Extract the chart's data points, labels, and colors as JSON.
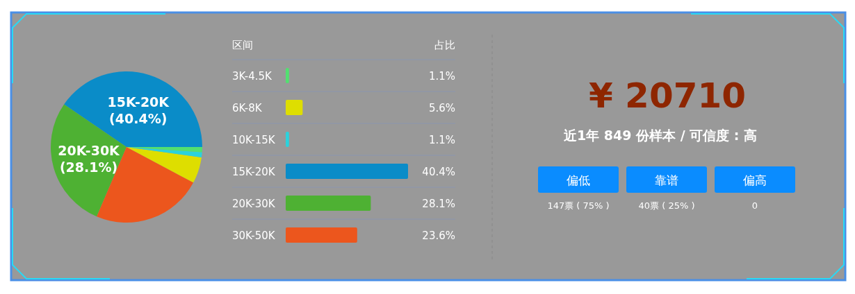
{
  "chart_data": [
    {
      "type": "pie",
      "categories": [
        "15K-20K",
        "20K-30K",
        null,
        null,
        null,
        null
      ],
      "values": [
        40.4,
        28.1,
        23.6,
        5.6,
        1.1,
        1.1
      ],
      "colors": [
        "#0a8cc8",
        "#4eb133",
        "#ec561d",
        "#dede00",
        "#2bd2dc",
        "#52e070"
      ],
      "value_labels": [
        "(40.4%)",
        "(28.1%)",
        null,
        null,
        null,
        null
      ]
    },
    {
      "type": "bar",
      "orientation": "horizontal",
      "ylabel": "区间",
      "xlabel": "占比",
      "categories": [
        "3K-4.5K",
        "6K-8K",
        "10K-15K",
        "15K-20K",
        "20K-30K",
        "30K-50K"
      ],
      "values": [
        1.1,
        5.6,
        1.1,
        40.4,
        28.1,
        23.6
      ],
      "colors": [
        "#52e070",
        "#dede00",
        "#2bd2dc",
        "#0a8cc8",
        "#4eb133",
        "#ec561d"
      ],
      "value_labels": [
        "1.1%",
        "5.6%",
        "1.1%",
        "40.4%",
        "28.1%",
        "23.6%"
      ]
    },
    {
      "type": "other",
      "title": "¥ 20710",
      "subtitle": "近1年 849 份样本 / 可信度 : 高",
      "categories": [
        "偏低",
        "靠谱",
        "偏高"
      ],
      "value_labels": [
        "147票 ( 75% )",
        "40票 ( 25% )",
        "0"
      ],
      "color": "#0a8cff"
    }
  ]
}
